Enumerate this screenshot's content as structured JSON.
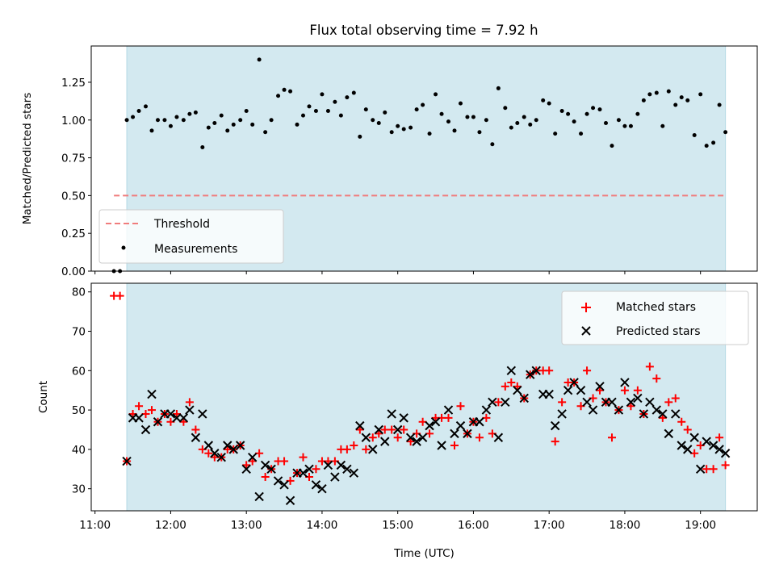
{
  "title": "Flux total observing time = 7.92 h",
  "colors": {
    "shade": "#d3e9f0",
    "shade_edge": "#b4d9e4",
    "threshold": "#f07c7c",
    "matched": "#ff0000",
    "predicted": "#000000",
    "measurement": "#000000"
  },
  "chart_data": [
    {
      "id": "ratio",
      "type": "scatter",
      "ylabel": "Matched/Predicted stars",
      "xlabel": "",
      "xlim": [
        10.95,
        19.75
      ],
      "ylim": [
        0,
        1.49
      ],
      "yticks": [
        0,
        0.25,
        0.5,
        0.75,
        1.0,
        1.25
      ],
      "ytick_labels": [
        "0.00",
        "0.25",
        "0.50",
        "0.75",
        "1.00",
        "1.25"
      ],
      "observing_span": [
        11.42,
        19.33
      ],
      "threshold": {
        "label": "Threshold",
        "y": 0.5,
        "x": [
          11.25,
          19.33
        ]
      },
      "legend": {
        "placement": "lower-left",
        "entries": [
          "Threshold",
          "Measurements"
        ]
      },
      "series": [
        {
          "name": "Measurements",
          "x": [
            11.25,
            11.33,
            11.42,
            11.5,
            11.58,
            11.67,
            11.75,
            11.83,
            11.92,
            12.0,
            12.08,
            12.17,
            12.25,
            12.33,
            12.42,
            12.5,
            12.58,
            12.67,
            12.75,
            12.83,
            12.92,
            13.0,
            13.08,
            13.17,
            13.25,
            13.33,
            13.42,
            13.5,
            13.58,
            13.67,
            13.75,
            13.83,
            13.92,
            14.0,
            14.08,
            14.17,
            14.25,
            14.33,
            14.42,
            14.5,
            14.58,
            14.67,
            14.75,
            14.83,
            14.92,
            15.0,
            15.08,
            15.17,
            15.25,
            15.33,
            15.42,
            15.5,
            15.58,
            15.67,
            15.75,
            15.83,
            15.92,
            16.0,
            16.08,
            16.17,
            16.25,
            16.33,
            16.42,
            16.5,
            16.58,
            16.67,
            16.75,
            16.83,
            16.92,
            17.0,
            17.08,
            17.17,
            17.25,
            17.33,
            17.42,
            17.5,
            17.58,
            17.67,
            17.75,
            17.83,
            17.92,
            18.0,
            18.08,
            18.17,
            18.25,
            18.33,
            18.42,
            18.5,
            18.58,
            18.67,
            18.75,
            18.83,
            18.92,
            19.0,
            19.08,
            19.17,
            19.25,
            19.33
          ],
          "y": [
            0.0,
            0.0,
            1.0,
            1.02,
            1.06,
            1.09,
            0.93,
            1.0,
            1.0,
            0.96,
            1.02,
            1.0,
            1.04,
            1.05,
            0.82,
            0.95,
            0.98,
            1.03,
            0.93,
            0.97,
            1.0,
            1.06,
            0.97,
            1.4,
            0.92,
            1.0,
            1.16,
            1.2,
            1.19,
            0.97,
            1.03,
            1.09,
            1.06,
            1.17,
            1.06,
            1.12,
            1.03,
            1.15,
            1.18,
            0.89,
            1.07,
            1.0,
            0.98,
            1.05,
            0.92,
            0.96,
            0.94,
            0.95,
            1.07,
            1.1,
            0.91,
            1.17,
            1.04,
            0.99,
            0.93,
            1.11,
            1.02,
            1.02,
            0.92,
            1.0,
            0.84,
            1.21,
            1.08,
            0.95,
            0.98,
            1.02,
            0.97,
            1.0,
            1.13,
            1.11,
            0.91,
            1.06,
            1.04,
            0.99,
            0.91,
            1.04,
            1.08,
            1.07,
            0.98,
            0.83,
            1.0,
            0.96,
            0.96,
            1.04,
            1.13,
            1.17,
            1.18,
            0.96,
            1.19,
            1.1,
            1.15,
            1.13,
            0.9,
            1.17,
            0.83,
            0.85,
            1.1,
            0.92
          ]
        }
      ]
    },
    {
      "id": "counts",
      "type": "scatter",
      "ylabel": "Count",
      "xlabel": "Time (UTC)",
      "xlim": [
        10.95,
        19.75
      ],
      "ylim": [
        24.4,
        82.2
      ],
      "yticks": [
        30,
        40,
        50,
        60,
        70,
        80
      ],
      "ytick_labels": [
        "30",
        "40",
        "50",
        "60",
        "70",
        "80"
      ],
      "xticks": [
        11,
        12,
        13,
        14,
        15,
        16,
        17,
        18,
        19
      ],
      "xtick_labels": [
        "11:00",
        "12:00",
        "13:00",
        "14:00",
        "15:00",
        "16:00",
        "17:00",
        "18:00",
        "19:00"
      ],
      "observing_span": [
        11.42,
        19.33
      ],
      "legend": {
        "placement": "upper-right",
        "entries": [
          "Matched stars",
          "Predicted stars"
        ]
      },
      "series": [
        {
          "name": "Matched stars",
          "marker": "plus",
          "x": [
            11.25,
            11.33,
            11.42,
            11.5,
            11.58,
            11.67,
            11.75,
            11.83,
            11.92,
            12.0,
            12.08,
            12.17,
            12.25,
            12.33,
            12.42,
            12.5,
            12.58,
            12.67,
            12.75,
            12.83,
            12.92,
            13.0,
            13.08,
            13.17,
            13.25,
            13.33,
            13.42,
            13.5,
            13.58,
            13.67,
            13.75,
            13.83,
            13.92,
            14.0,
            14.08,
            14.17,
            14.25,
            14.33,
            14.42,
            14.5,
            14.58,
            14.67,
            14.75,
            14.83,
            14.92,
            15.0,
            15.08,
            15.17,
            15.25,
            15.33,
            15.42,
            15.5,
            15.58,
            15.67,
            15.75,
            15.83,
            15.92,
            16.0,
            16.08,
            16.17,
            16.25,
            16.33,
            16.42,
            16.5,
            16.58,
            16.67,
            16.75,
            16.83,
            16.92,
            17.0,
            17.08,
            17.17,
            17.25,
            17.33,
            17.42,
            17.5,
            17.58,
            17.67,
            17.75,
            17.83,
            17.92,
            18.0,
            18.08,
            18.17,
            18.25,
            18.33,
            18.42,
            18.5,
            18.58,
            18.67,
            18.75,
            18.83,
            18.92,
            19.0,
            19.08,
            19.17,
            19.25,
            19.33
          ],
          "y": [
            79,
            79,
            37,
            49,
            51,
            49,
            50,
            47,
            49,
            47,
            49,
            47,
            52,
            45,
            40,
            39,
            38,
            38,
            40,
            40,
            41,
            36,
            37,
            39,
            33,
            35,
            37,
            37,
            32,
            34,
            38,
            33,
            35,
            37,
            37,
            37,
            40,
            40,
            41,
            45,
            40,
            43,
            44,
            45,
            45,
            43,
            45,
            42,
            44,
            47,
            44,
            48,
            48,
            48,
            41,
            51,
            44,
            47,
            43,
            48,
            44,
            52,
            56,
            57,
            56,
            53,
            59,
            60,
            60,
            60,
            42,
            52,
            57,
            57,
            51,
            60,
            53,
            55,
            52,
            43,
            50,
            55,
            51,
            55,
            49,
            61,
            58,
            48,
            52,
            53,
            47,
            45,
            39,
            41,
            35,
            35,
            43,
            36
          ]
        },
        {
          "name": "Predicted stars",
          "marker": "x",
          "x": [
            11.42,
            11.5,
            11.58,
            11.67,
            11.75,
            11.83,
            11.92,
            12.0,
            12.08,
            12.17,
            12.25,
            12.33,
            12.42,
            12.5,
            12.58,
            12.67,
            12.75,
            12.83,
            12.92,
            13.0,
            13.08,
            13.17,
            13.25,
            13.33,
            13.42,
            13.5,
            13.58,
            13.67,
            13.75,
            13.83,
            13.92,
            14.0,
            14.08,
            14.17,
            14.25,
            14.33,
            14.42,
            14.5,
            14.58,
            14.67,
            14.75,
            14.83,
            14.92,
            15.0,
            15.08,
            15.17,
            15.25,
            15.33,
            15.42,
            15.5,
            15.58,
            15.67,
            15.75,
            15.83,
            15.92,
            16.0,
            16.08,
            16.17,
            16.25,
            16.33,
            16.42,
            16.5,
            16.58,
            16.67,
            16.75,
            16.83,
            16.92,
            17.0,
            17.08,
            17.17,
            17.25,
            17.33,
            17.42,
            17.5,
            17.58,
            17.67,
            17.75,
            17.83,
            17.92,
            18.0,
            18.08,
            18.17,
            18.25,
            18.33,
            18.42,
            18.5,
            18.58,
            18.67,
            18.75,
            18.83,
            18.92,
            19.0,
            19.08,
            19.17,
            19.25,
            19.33
          ],
          "y": [
            37,
            48,
            48,
            45,
            54,
            47,
            49,
            49,
            48,
            48,
            50,
            43,
            49,
            41,
            39,
            38,
            41,
            40,
            41,
            35,
            38,
            28,
            36,
            35,
            32,
            31,
            27,
            34,
            34,
            35,
            31,
            30,
            36,
            33,
            36,
            35,
            34,
            46,
            43,
            40,
            45,
            42,
            49,
            45,
            48,
            43,
            42,
            43,
            46,
            47,
            41,
            50,
            44,
            46,
            44,
            47,
            47,
            50,
            52,
            43,
            52,
            60,
            55,
            53,
            59,
            60,
            54,
            54,
            46,
            49,
            55,
            57,
            55,
            52,
            50,
            56,
            52,
            52,
            50,
            57,
            52,
            53,
            49,
            52,
            50,
            49,
            44,
            49,
            41,
            40,
            43,
            35,
            42,
            41,
            40,
            39
          ]
        }
      ]
    }
  ]
}
